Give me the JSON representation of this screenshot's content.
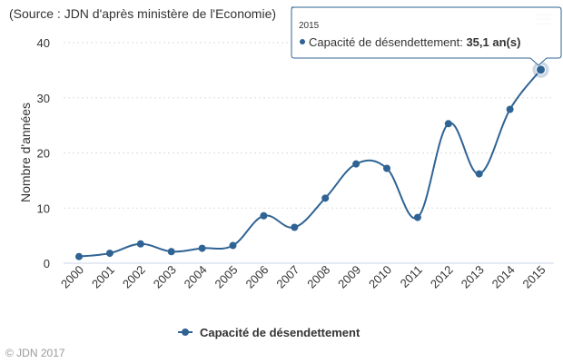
{
  "source_note": "(Source : JDN d'après ministère de l'Economie)",
  "credits": "© JDN 2017",
  "menu_icon": "hamburger-menu-icon",
  "chart_data": {
    "type": "line",
    "categories": [
      "2000",
      "2001",
      "2002",
      "2003",
      "2004",
      "2005",
      "2006",
      "2007",
      "2008",
      "2009",
      "2010",
      "2011",
      "2012",
      "2013",
      "2014",
      "2015"
    ],
    "series": [
      {
        "name": "Capacité de désendettement",
        "color": "#2f6394",
        "values": [
          1.2,
          1.8,
          3.5,
          2.1,
          2.7,
          3.2,
          8.6,
          6.5,
          11.8,
          18.0,
          17.2,
          8.3,
          25.3,
          16.2,
          27.9,
          35.1
        ]
      }
    ],
    "ylabel": "Nombre d'années",
    "xlabel": "",
    "ylim": [
      0,
      40
    ],
    "yticks": [
      0,
      10,
      20,
      30,
      40
    ],
    "grid": true,
    "legend": "bottom-center",
    "tooltip": {
      "header": "2015",
      "series_label": "Capacité de désendettement: ",
      "value_text": "35,1 an(s)"
    }
  }
}
